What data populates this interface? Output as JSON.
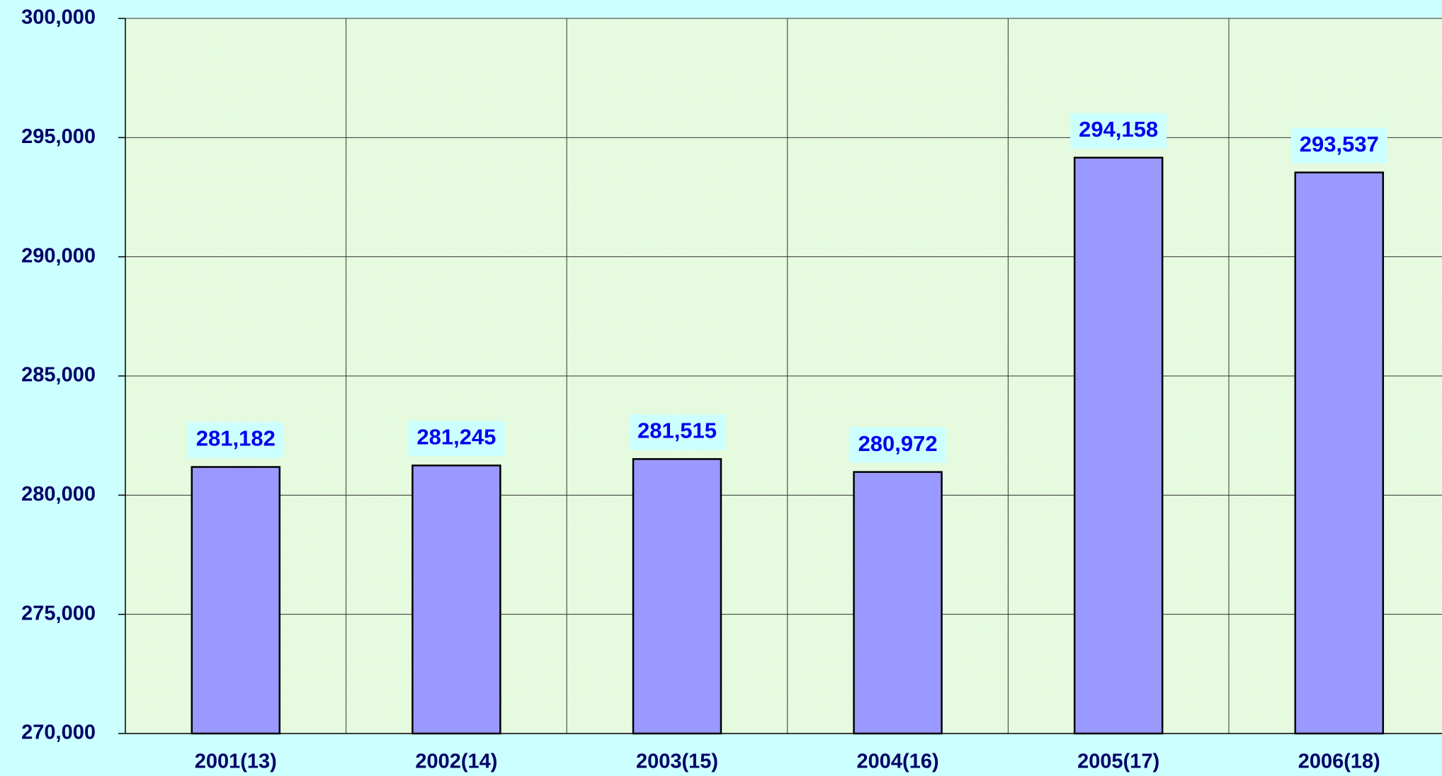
{
  "chart_data": {
    "type": "bar",
    "categories": [
      "2001(13)",
      "2002(14)",
      "2003(15)",
      "2004(16)",
      "2005(17)",
      "2006(18)"
    ],
    "values": [
      281182,
      281245,
      281515,
      280972,
      294158,
      293537
    ],
    "value_labels": [
      "281,182",
      "281,245",
      "281,515",
      "280,972",
      "294,158",
      "293,537"
    ],
    "color": "#9999ff",
    "ylim": [
      270000,
      300000
    ],
    "yticks": [
      {
        "value": 270000,
        "label": "270,000"
      },
      {
        "value": 275000,
        "label": "275,000"
      },
      {
        "value": 280000,
        "label": "280,000"
      },
      {
        "value": 285000,
        "label": "285,000"
      },
      {
        "value": 290000,
        "label": "290,000"
      },
      {
        "value": 295000,
        "label": "295,000"
      },
      {
        "value": 300000,
        "label": "300,000"
      }
    ],
    "grid": true
  }
}
